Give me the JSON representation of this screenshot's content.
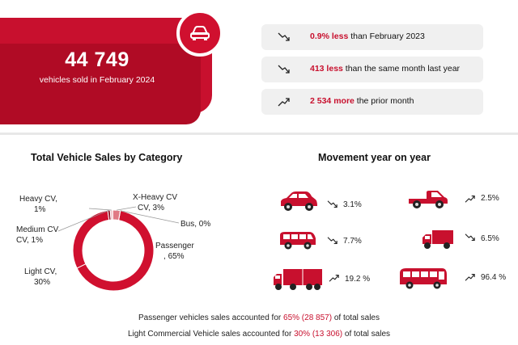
{
  "header": {
    "total_value": "44 749",
    "total_label": "vehicles sold in February 2024"
  },
  "comparisons": [
    {
      "highlight": "0.9% less",
      "rest": " than February 2023",
      "trend": "down"
    },
    {
      "highlight": "413 less",
      "rest": " than the same month last year",
      "trend": "down"
    },
    {
      "highlight": "2 534 more",
      "rest": " the prior month",
      "trend": "up"
    }
  ],
  "chart_data": {
    "type": "pie",
    "donut": true,
    "title": "Total Vehicle Sales by Category",
    "slices": [
      {
        "label": "Passenger",
        "value_label": "65%",
        "value": 65
      },
      {
        "label": "Light CV",
        "value_label": "30%",
        "value": 30
      },
      {
        "label": "Medium CV",
        "value_label": "1%",
        "value": 1
      },
      {
        "label": "Heavy CV",
        "value_label": "1%",
        "value": 1
      },
      {
        "label": "X-Heavy CV",
        "value_label": "3%",
        "value": 3
      },
      {
        "label": "Bus",
        "value_label": "0%",
        "value": 0
      }
    ],
    "colors": [
      "#d0102f",
      "#d0102f",
      "#8e0f22",
      "#f2c6cc",
      "#e07a85",
      "#6a0a18"
    ]
  },
  "movement": {
    "title": "Movement year on year",
    "items": [
      {
        "vehicle": "passenger-car",
        "trend": "down",
        "value": "3.1%"
      },
      {
        "vehicle": "bakkie",
        "trend": "up",
        "value": "2.5%"
      },
      {
        "vehicle": "minibus",
        "trend": "down",
        "value": "7.7%"
      },
      {
        "vehicle": "medium-truck",
        "trend": "down",
        "value": "6.5%"
      },
      {
        "vehicle": "heavy-truck",
        "trend": "up",
        "value": "19.2 %"
      },
      {
        "vehicle": "bus",
        "trend": "up",
        "value": "96.4 %"
      }
    ]
  },
  "footnotes": [
    {
      "pre": "Passenger vehicles sales accounted for ",
      "highlight": "65% (28 857)",
      "post": " of total sales"
    },
    {
      "pre": "Light Commercial Vehicle sales accounted for ",
      "highlight": "30% (13 306)",
      "post": " of total sales"
    }
  ]
}
